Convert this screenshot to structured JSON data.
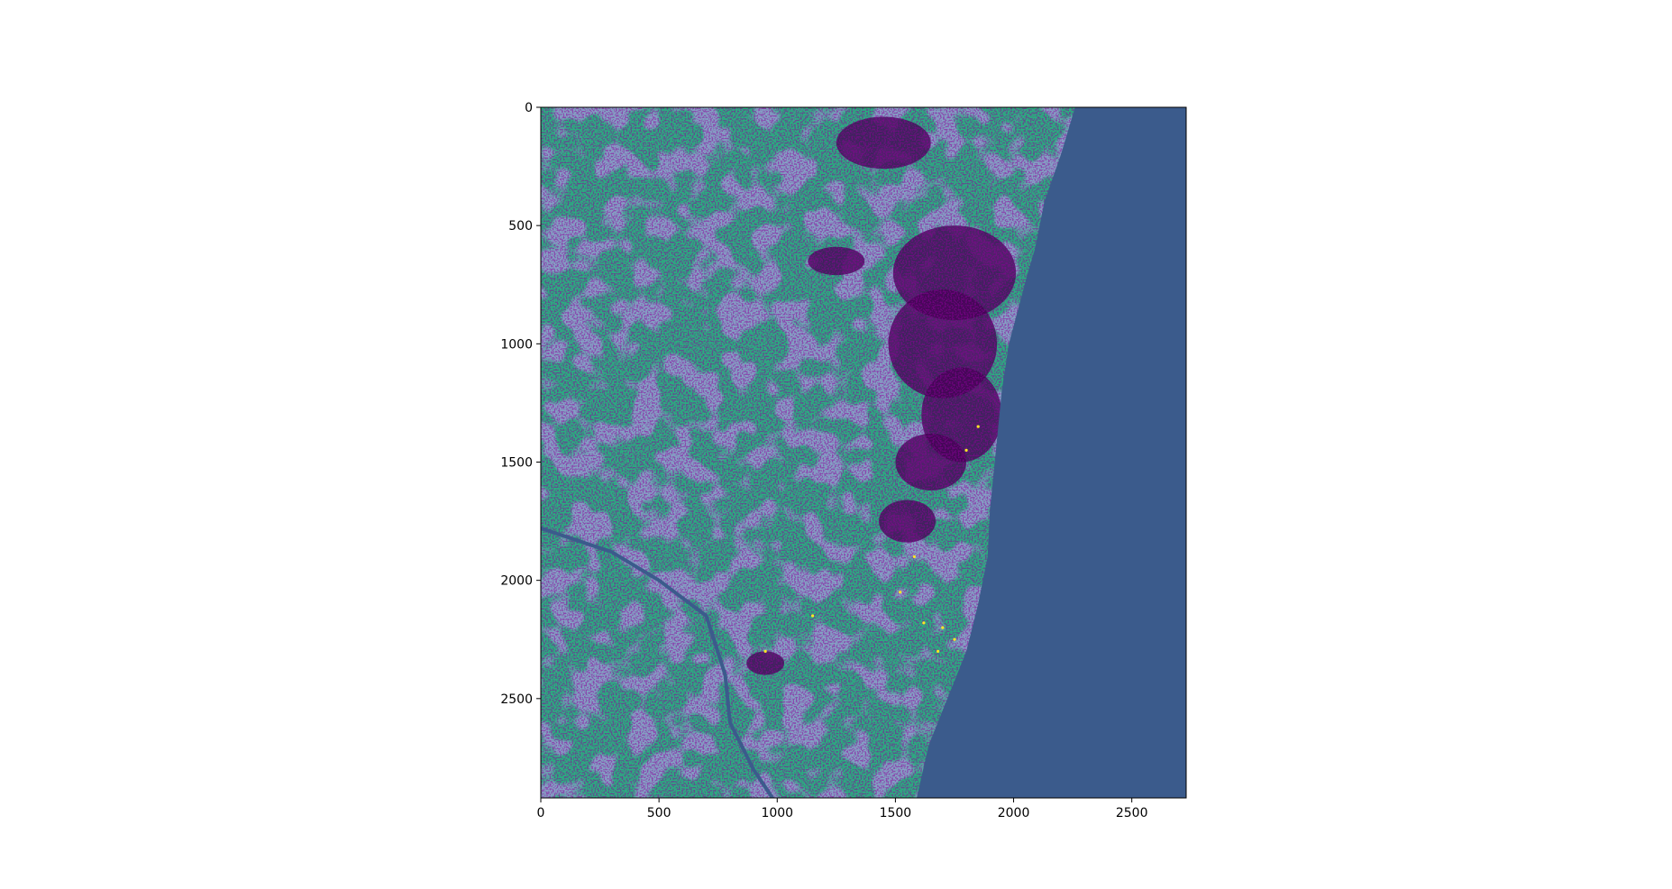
{
  "chart_data": {
    "type": "heatmap",
    "title": "",
    "xlabel": "",
    "ylabel": "",
    "xlim": [
      0,
      2730
    ],
    "ylim": [
      2920,
      0
    ],
    "x_ticks": [
      0,
      500,
      1000,
      1500,
      2000,
      2500
    ],
    "y_ticks": [
      0,
      500,
      1000,
      1500,
      2000,
      2500
    ],
    "x_tick_labels": [
      "0",
      "500",
      "1000",
      "1500",
      "2000",
      "2500"
    ],
    "y_tick_labels": [
      "0",
      "500",
      "1000",
      "1500",
      "2000",
      "2500"
    ],
    "grid": false,
    "colormap": "viridis",
    "classes": [
      {
        "color": "#440154"
      },
      {
        "color": "#3b5b8c"
      },
      {
        "color": "#29af7f"
      },
      {
        "color": "#fde725"
      }
    ],
    "coastline": [
      [
        2260,
        0
      ],
      [
        2200,
        200
      ],
      [
        2130,
        400
      ],
      [
        2090,
        600
      ],
      [
        2060,
        700
      ],
      [
        2020,
        850
      ],
      [
        1980,
        1000
      ],
      [
        1950,
        1200
      ],
      [
        1920,
        1500
      ],
      [
        1900,
        1700
      ],
      [
        1890,
        1900
      ],
      [
        1850,
        2100
      ],
      [
        1800,
        2300
      ],
      [
        1720,
        2500
      ],
      [
        1640,
        2700
      ],
      [
        1590,
        2920
      ]
    ]
  }
}
